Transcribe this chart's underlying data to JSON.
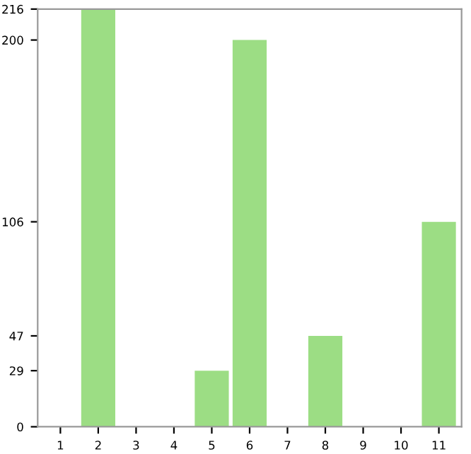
{
  "chart_data": {
    "type": "bar",
    "categories": [
      "1",
      "2",
      "3",
      "4",
      "5",
      "6",
      "7",
      "8",
      "9",
      "10",
      "11"
    ],
    "values": [
      0,
      216,
      0,
      0,
      29,
      200,
      0,
      47,
      0,
      0,
      106
    ],
    "color": "#9cdd84",
    "ylim": [
      0,
      216
    ],
    "yticks": [
      0,
      29,
      47,
      106,
      200,
      216
    ],
    "grid": false,
    "legend": false
  }
}
